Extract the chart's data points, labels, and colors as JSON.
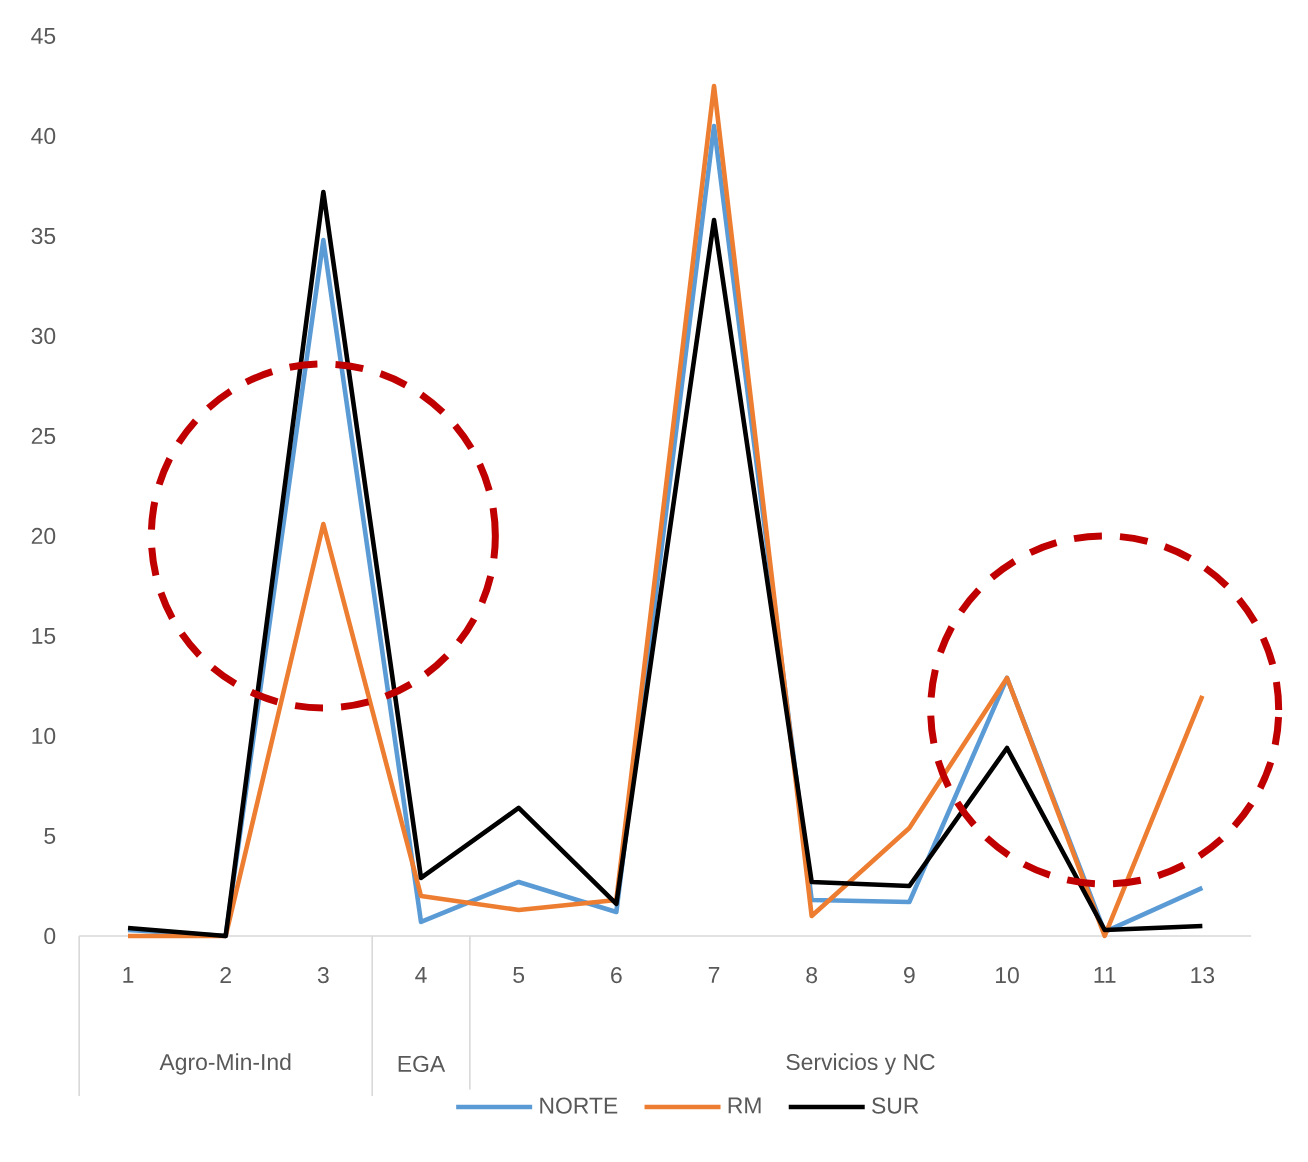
{
  "chart_data": {
    "type": "line",
    "categories": [
      "1",
      "2",
      "3",
      "4",
      "5",
      "6",
      "7",
      "8",
      "9",
      "10",
      "11",
      "13"
    ],
    "series": [
      {
        "name": "NORTE",
        "color": "#5b9bd5",
        "values": [
          0.3,
          0,
          34.8,
          0.7,
          2.7,
          1.2,
          40.5,
          1.8,
          1.7,
          12.9,
          0.2,
          2.4
        ]
      },
      {
        "name": "RM",
        "color": "#ed7d31",
        "values": [
          0,
          0,
          20.6,
          2,
          1.3,
          1.8,
          42.5,
          1,
          5.4,
          12.9,
          0,
          12
        ]
      },
      {
        "name": "SUR",
        "color": "#000000",
        "values": [
          0.4,
          0,
          37.2,
          2.9,
          6.4,
          1.6,
          35.8,
          2.7,
          2.5,
          9.4,
          0.3,
          0.5
        ]
      }
    ],
    "ylim": [
      0,
      45
    ],
    "yticks": [
      0,
      5,
      10,
      15,
      20,
      25,
      30,
      35,
      40,
      45
    ],
    "annotations": [
      "Agro-Min-Ind",
      "EGA",
      "Servicios y NC"
    ],
    "legend": "bottom",
    "grid": false,
    "line_style": "solid"
  }
}
